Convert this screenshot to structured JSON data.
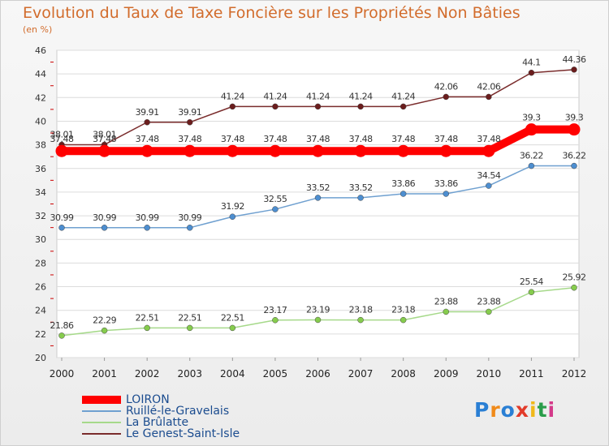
{
  "chart_data": {
    "type": "line",
    "title": "Evolution du Taux de Taxe Foncière sur les Propriétés Non Bâties",
    "ylabel": "(en %)",
    "xlabel": "",
    "ylim": [
      20,
      46
    ],
    "yticks": [
      "20",
      "22",
      "24",
      "26",
      "28",
      "30",
      "32",
      "34",
      "36",
      "38",
      "40",
      "42",
      "44",
      "46"
    ],
    "categories": [
      "2000",
      "2001",
      "2002",
      "2003",
      "2004",
      "2005",
      "2006",
      "2007",
      "2008",
      "2009",
      "2010",
      "2011",
      "2012"
    ],
    "grid": true,
    "legend_position": "bottom-left",
    "series": [
      {
        "name": "LOIRON",
        "color": "#ff0000",
        "values": [
          37.48,
          37.48,
          37.48,
          37.48,
          37.48,
          37.48,
          37.48,
          37.48,
          37.48,
          37.48,
          37.48,
          39.3,
          39.3
        ],
        "labels": [
          "37.48",
          "37.48",
          "37.48",
          "37.48",
          "37.48",
          "37.48",
          "37.48",
          "37.48",
          "37.48",
          "37.48",
          "37.48",
          "39.3",
          "39.3"
        ]
      },
      {
        "name": "Ruillé-le-Gravelais",
        "color": "#6fa0d0",
        "values": [
          30.99,
          30.99,
          30.99,
          30.99,
          31.92,
          32.55,
          33.52,
          33.52,
          33.86,
          33.86,
          34.54,
          36.22,
          36.22
        ],
        "labels": [
          "30.99",
          "30.99",
          "30.99",
          "30.99",
          "31.92",
          "32.55",
          "33.52",
          "33.52",
          "33.86",
          "33.86",
          "34.54",
          "36.22",
          "36.22"
        ]
      },
      {
        "name": "La Brûlatte",
        "color": "#a6d98a",
        "values": [
          21.86,
          22.29,
          22.51,
          22.51,
          22.51,
          23.17,
          23.19,
          23.18,
          23.18,
          23.88,
          23.88,
          25.54,
          25.92
        ],
        "labels": [
          "21.86",
          "22.29",
          "22.51",
          "22.51",
          "22.51",
          "23.17",
          "23.19",
          "23.18",
          "23.18",
          "23.88",
          "23.88",
          "25.54",
          "25.92"
        ]
      },
      {
        "name": "Le Genest-Saint-Isle",
        "color": "#7a2c2c",
        "values": [
          38.01,
          38.01,
          39.91,
          39.91,
          41.24,
          41.24,
          41.24,
          41.24,
          41.24,
          42.06,
          42.06,
          44.1,
          44.36
        ],
        "labels": [
          "38.01",
          "38.01",
          "39.91",
          "39.91",
          "41.24",
          "41.24",
          "41.24",
          "41.24",
          "41.24",
          "42.06",
          "42.06",
          "44.1",
          "44.36"
        ]
      }
    ]
  },
  "logo": {
    "text": "Proxiti"
  }
}
